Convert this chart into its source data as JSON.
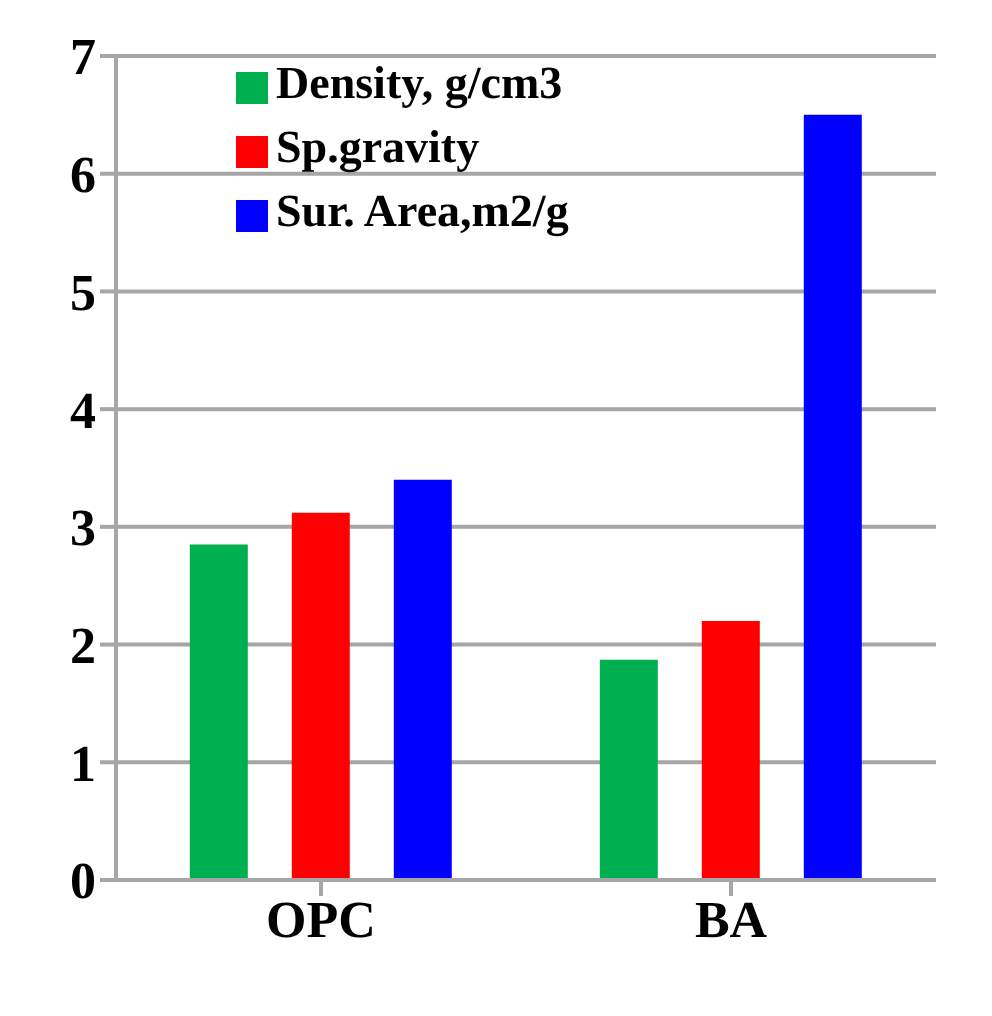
{
  "chart_data": {
    "type": "bar",
    "categories": [
      "OPC",
      "BA"
    ],
    "series": [
      {
        "name": "Density, g/cm3",
        "color": "#00b050",
        "values": [
          2.85,
          1.87
        ]
      },
      {
        "name": "Sp.gravity",
        "color": "#ff0000",
        "values": [
          3.12,
          2.2
        ]
      },
      {
        "name": "Sur. Area,m2/g",
        "color": "#0000ff",
        "values": [
          3.4,
          6.5
        ]
      }
    ],
    "ylim": [
      0,
      7
    ],
    "yticks": [
      0,
      1,
      2,
      3,
      4,
      5,
      6,
      7
    ],
    "grid": "y",
    "legend": "top left"
  }
}
